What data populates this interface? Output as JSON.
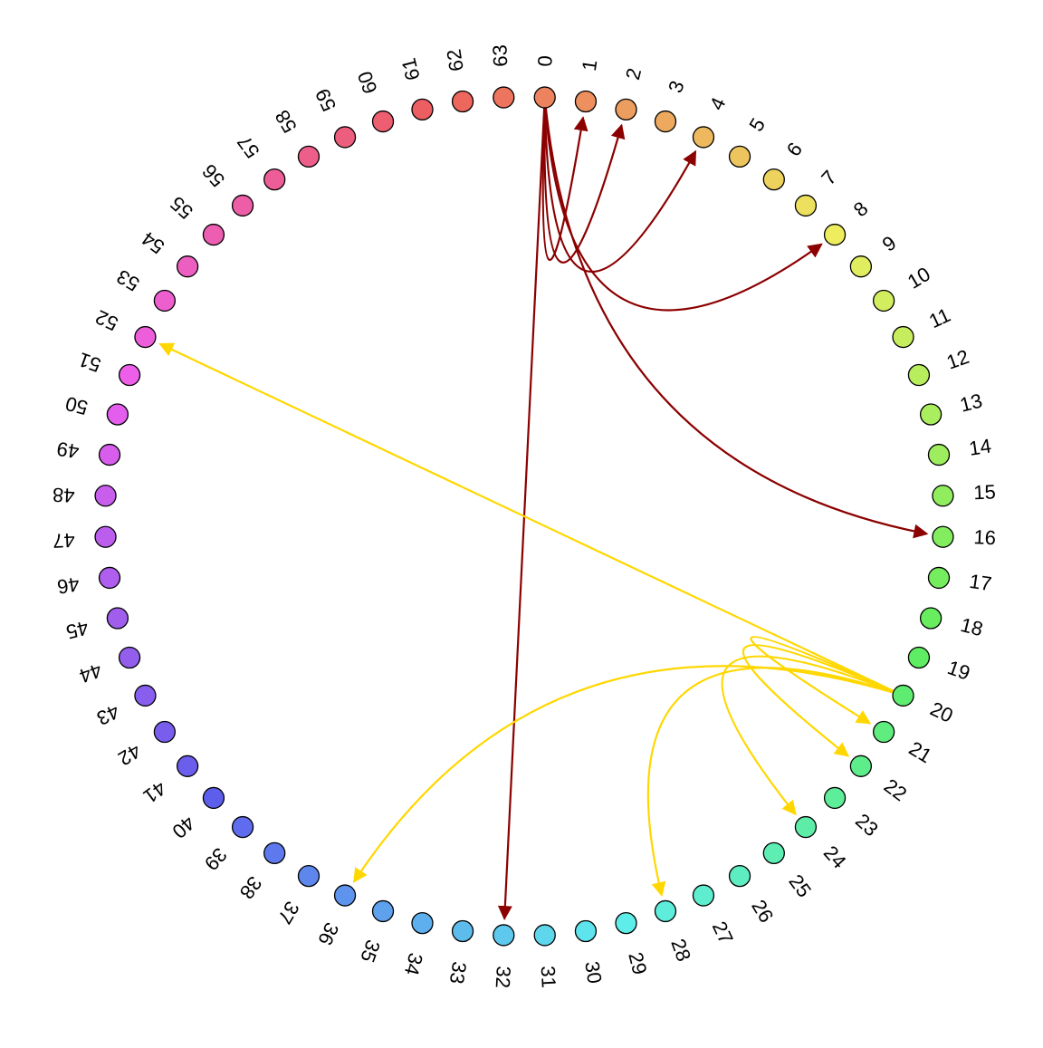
{
  "nodes": [
    "0",
    "1",
    "2",
    "3",
    "4",
    "5",
    "6",
    "7",
    "8",
    "9",
    "10",
    "11",
    "12",
    "13",
    "14",
    "15",
    "16",
    "17",
    "18",
    "19",
    "20",
    "21",
    "22",
    "23",
    "24",
    "25",
    "26",
    "27",
    "28",
    "29",
    "30",
    "31",
    "32",
    "33",
    "34",
    "35",
    "36",
    "37",
    "38",
    "39",
    "40",
    "41",
    "42",
    "43",
    "44",
    "45",
    "46",
    "47",
    "48",
    "49",
    "50",
    "51",
    "52",
    "53",
    "54",
    "55",
    "56",
    "57",
    "58",
    "59",
    "60",
    "61",
    "62",
    "63"
  ],
  "edges": [
    {
      "from": 0,
      "to": 1,
      "color": "#8b0000"
    },
    {
      "from": 0,
      "to": 2,
      "color": "#8b0000"
    },
    {
      "from": 0,
      "to": 4,
      "color": "#8b0000"
    },
    {
      "from": 0,
      "to": 8,
      "color": "#8b0000"
    },
    {
      "from": 0,
      "to": 16,
      "color": "#8b0000"
    },
    {
      "from": 0,
      "to": 32,
      "color": "#8b0000"
    },
    {
      "from": 20,
      "to": 21,
      "color": "#ffd700"
    },
    {
      "from": 20,
      "to": 22,
      "color": "#ffd700"
    },
    {
      "from": 20,
      "to": 24,
      "color": "#ffd700"
    },
    {
      "from": 20,
      "to": 28,
      "color": "#ffd700"
    },
    {
      "from": 20,
      "to": 36,
      "color": "#ffd700"
    },
    {
      "from": 20,
      "to": 52,
      "color": "#ffd700"
    }
  ]
}
